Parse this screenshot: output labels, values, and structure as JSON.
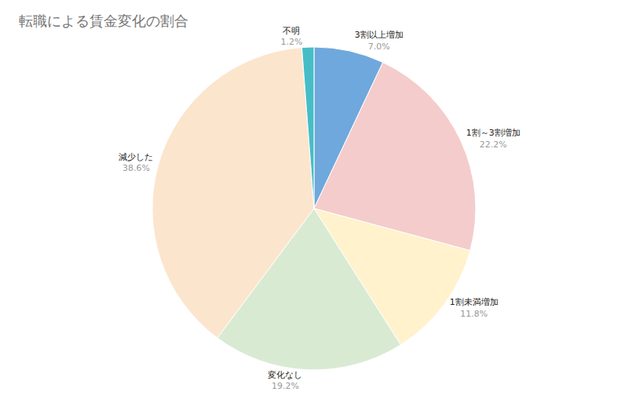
{
  "chart_data": {
    "type": "pie",
    "title": "転職による賃金変化の割合",
    "categories": [
      "3割以上増加",
      "1割～3割増加",
      "1割未満増加",
      "変化なし",
      "減少した",
      "不明"
    ],
    "values": [
      7.0,
      22.2,
      11.8,
      19.2,
      38.6,
      1.2
    ],
    "value_labels": [
      "7.0%",
      "22.2%",
      "11.8%",
      "19.2%",
      "38.6%",
      "1.2%"
    ],
    "colors": [
      "#6fa8dc",
      "#f4cccc",
      "#fff2cc",
      "#d9ead3",
      "#fce5cd",
      "#46bdc6"
    ],
    "data_labels": true
  }
}
